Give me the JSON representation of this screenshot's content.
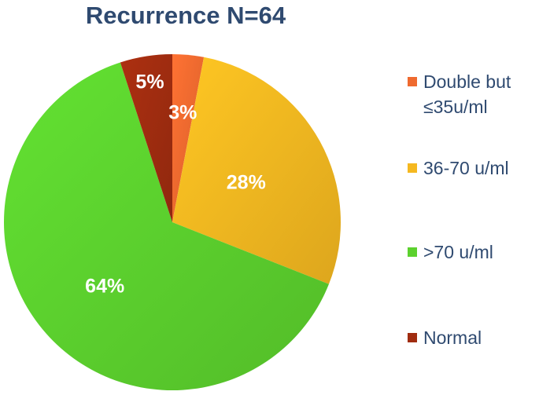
{
  "chart_data": {
    "type": "pie",
    "title": "Recurrence N=64",
    "slices": [
      {
        "label": "Double but ≤35u/ml",
        "legend_lines": [
          "Double but",
          "≤35u/ml"
        ],
        "value": 3,
        "value_label": "3%",
        "color": "#ef6a2f"
      },
      {
        "label": "36-70 u/ml",
        "legend_lines": [
          "36-70 u/ml"
        ],
        "value": 28,
        "value_label": "28%",
        "color": "#f5b820"
      },
      {
        "label": ">70 u/ml",
        "legend_lines": [
          ">70 u/ml"
        ],
        "value": 64,
        "value_label": "64%",
        "color": "#5cd12e"
      },
      {
        "label": "Normal",
        "legend_lines": [
          "Normal"
        ],
        "value": 5,
        "value_label": "5%",
        "color": "#a02c10"
      }
    ],
    "legend_position": "right"
  }
}
